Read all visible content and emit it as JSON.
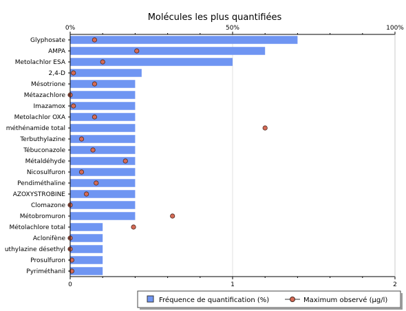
{
  "chart_data": {
    "type": "bar",
    "orientation": "horizontal",
    "title": "Molécules les plus quantifiées",
    "categories": [
      "Glyphosate",
      "AMPA",
      "Metolachlor ESA",
      "2,4-D",
      "Mésotrione",
      "Métazachlore",
      "Imazamox",
      "Metolachlor OXA",
      "méthénamide total",
      "Terbuthylazine",
      "Tébuconazole",
      "Métaldéhyde",
      "Nicosulfuron",
      "Pendiméthaline",
      "AZOXYSTROBINE",
      "Clomazone",
      "Métobromuron",
      "Métolachlore total",
      "Aclonifène",
      "uthylazine désethyl",
      "Prosulfuron",
      "Pyriméthanil"
    ],
    "series": [
      {
        "name": "Fréquence de quantification (%)",
        "axis": "top",
        "values": [
          70,
          60,
          50,
          22,
          20,
          20,
          20,
          20,
          20,
          20,
          20,
          20,
          20,
          20,
          20,
          20,
          20,
          10,
          10,
          10,
          10,
          10
        ]
      },
      {
        "name": "Maximum observé (µg/l)",
        "axis": "bottom",
        "values": [
          0.15,
          0.41,
          0.2,
          0.02,
          0.15,
          0.0,
          0.02,
          0.15,
          1.2,
          0.07,
          0.14,
          0.34,
          0.07,
          0.16,
          0.1,
          0.0,
          0.63,
          0.39,
          0.0,
          0.0,
          0.01,
          0.01
        ]
      }
    ],
    "top_axis": {
      "min": 0,
      "max": 100,
      "ticks": [
        "0%",
        "50%",
        "100%"
      ]
    },
    "bottom_axis": {
      "min": 0,
      "max": 2,
      "ticks": [
        "0",
        "1",
        "2"
      ]
    },
    "grid": true,
    "legend_position": "bottom-right",
    "colors": {
      "bar": "#6f95f2",
      "bar_stroke": "#4a6fd0",
      "marker": "#d56a55",
      "marker_stroke": "#4a2a22",
      "grid": "#e2e2e2"
    }
  }
}
